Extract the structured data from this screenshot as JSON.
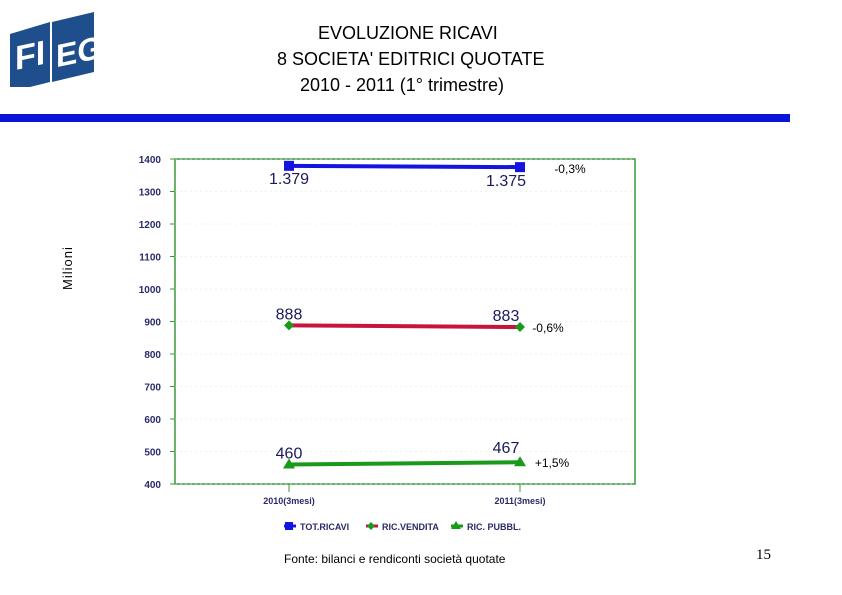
{
  "logo": {
    "text": "FIEG",
    "color": "#1f4e8c"
  },
  "title": {
    "line1": "EVOLUZIONE RICAVI",
    "line2": "8 SOCIETA' EDITRICI QUOTATE",
    "line3": "2010 - 2011 (1° trimestre)"
  },
  "accent_color": "#0a14d8",
  "chart_data": {
    "type": "line",
    "ylabel": "Milioni",
    "ylim": [
      400,
      1400
    ],
    "yticks": [
      "1400",
      "1300",
      "1200",
      "1100",
      "1000",
      "900",
      "800",
      "700",
      "600",
      "500",
      "400"
    ],
    "categories": [
      "2010(3mesi)",
      "2011(3mesi)"
    ],
    "grid": true,
    "legend_position": "bottom",
    "series": [
      {
        "name": "TOT.RICAVI",
        "color": "#1414e0",
        "marker": "square",
        "values": [
          1379,
          1375
        ],
        "labels": [
          "1.379",
          "1.375"
        ],
        "change": "-0,3%"
      },
      {
        "name": "RIC.VENDITA",
        "color": "#c8143c",
        "marker": "diamond",
        "values": [
          888,
          883
        ],
        "labels": [
          "888",
          "883"
        ],
        "change": "-0,6%"
      },
      {
        "name": "RIC. PUBBL.",
        "color": "#1a9a1a",
        "marker": "triangle",
        "values": [
          460,
          467
        ],
        "labels": [
          "460",
          "467"
        ],
        "change": "+1,5%"
      }
    ]
  },
  "footer": {
    "source": "Fonte: bilanci e rendiconti società quotate",
    "page": "15"
  }
}
